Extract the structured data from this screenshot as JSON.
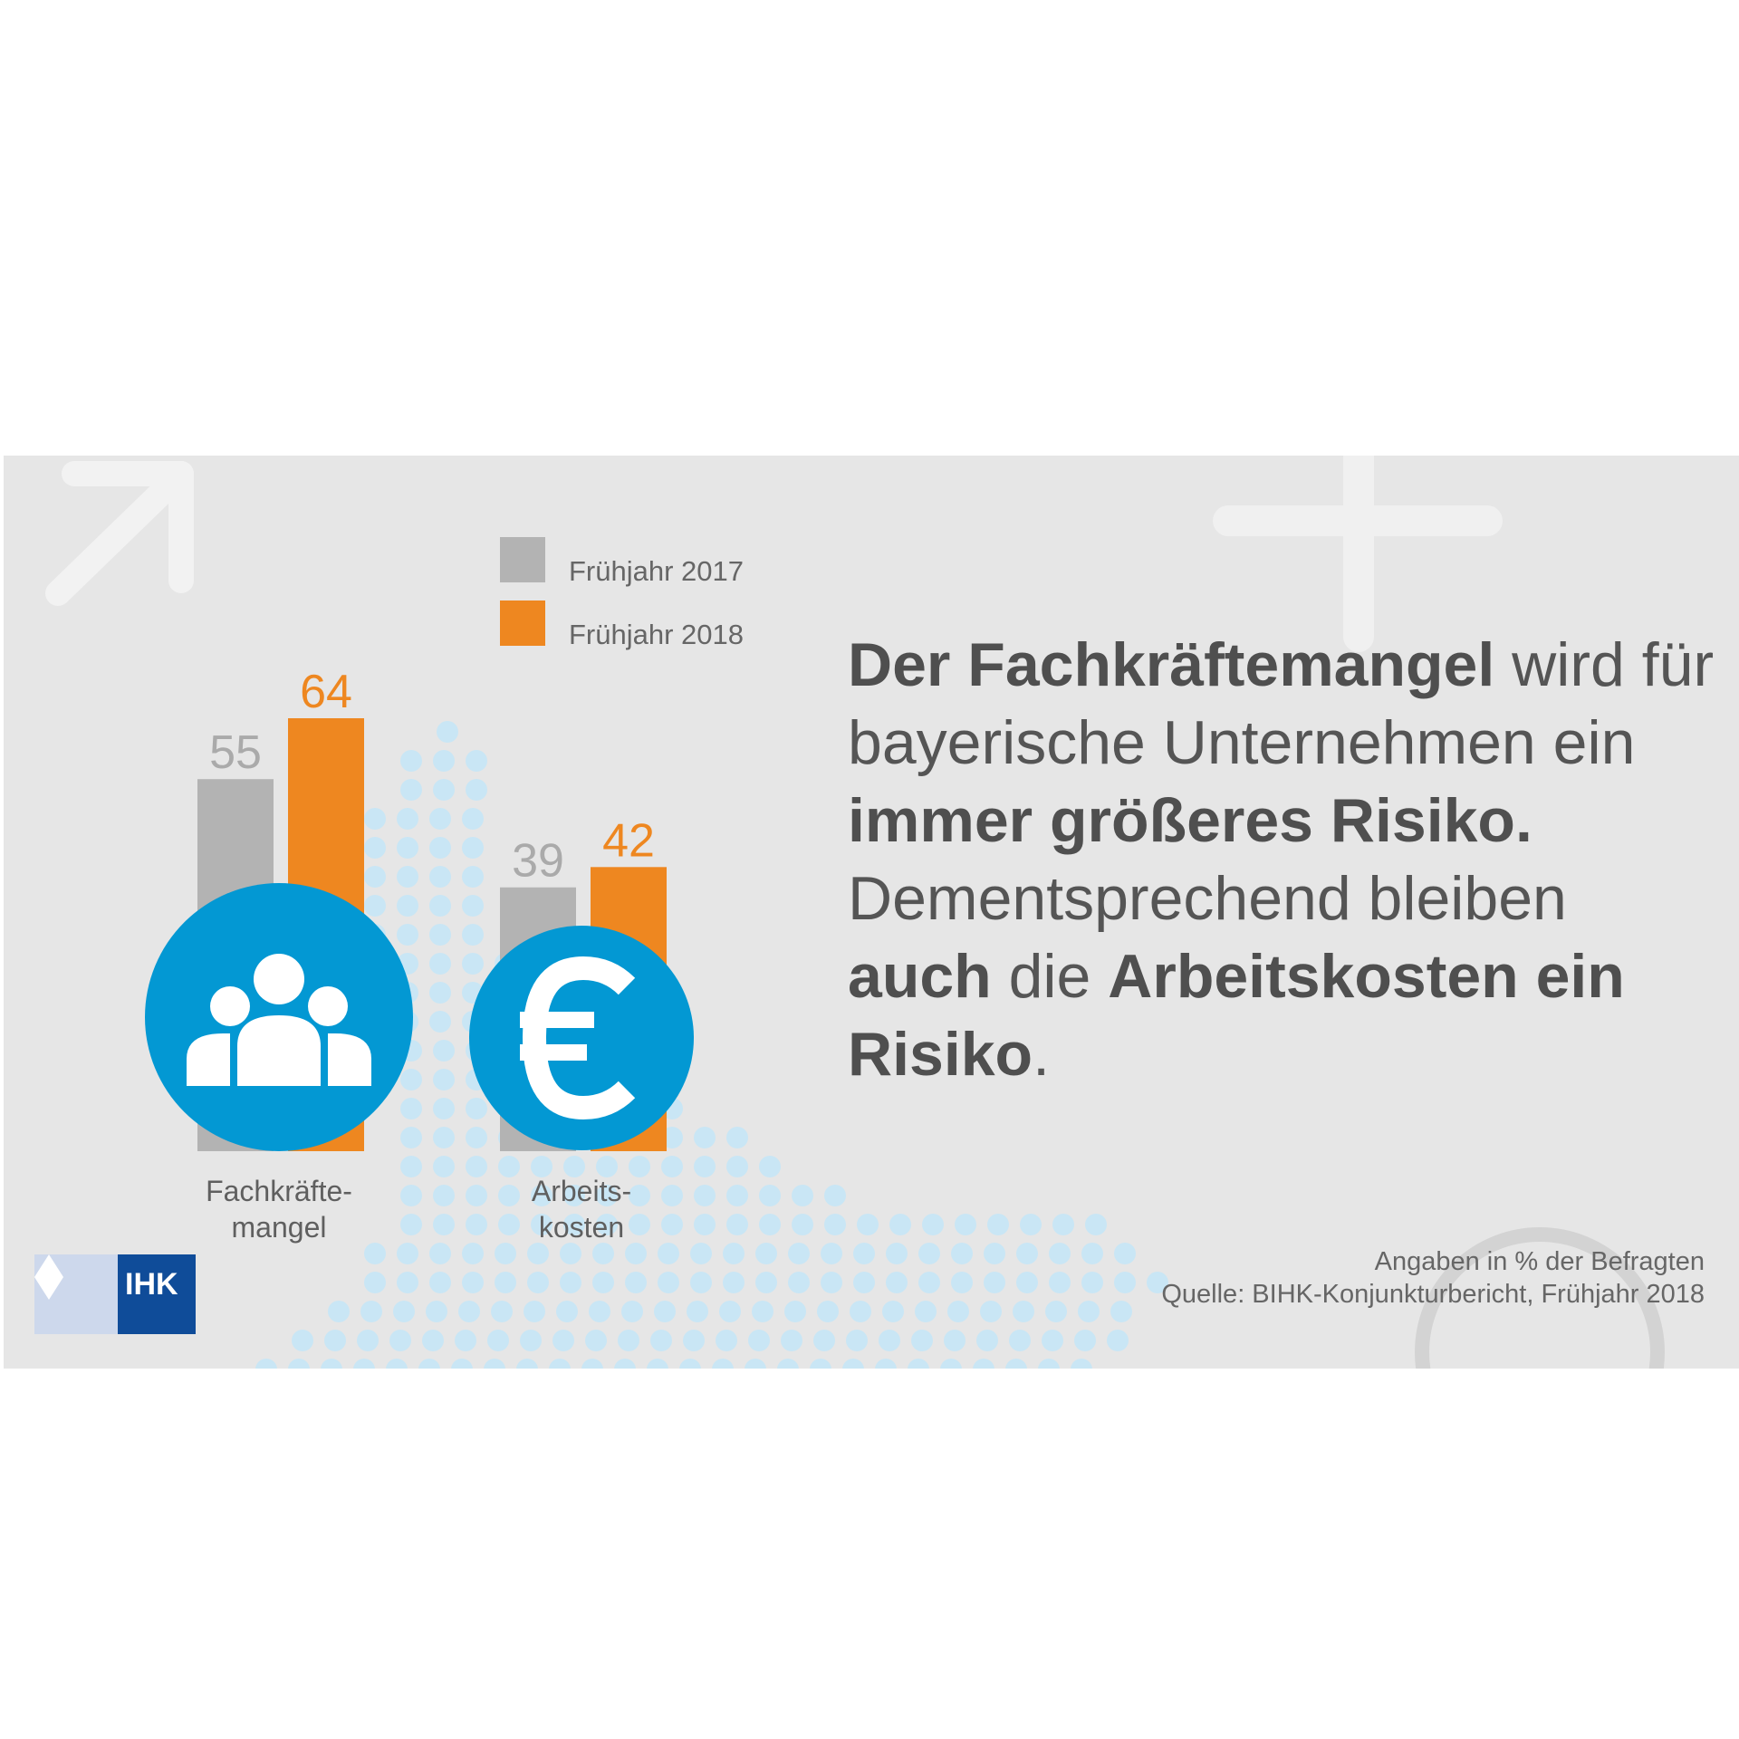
{
  "chart_data": {
    "type": "bar",
    "categories": [
      "Fachkräfte-\nmangel",
      "Arbeits-\nkosten"
    ],
    "category_lines": [
      [
        "Fachkräfte-",
        "mangel"
      ],
      [
        "Arbeits-",
        "kosten"
      ]
    ],
    "series": [
      {
        "name": "Frühjahr 2017",
        "values": [
          55,
          39
        ],
        "color": "#b3b3b3"
      },
      {
        "name": "Frühjahr 2018",
        "values": [
          64,
          42
        ],
        "color": "#ee8720"
      }
    ],
    "ylim": [
      0,
      64
    ],
    "legend_placement": "top-right",
    "grid": false
  },
  "headline": {
    "parts": [
      {
        "text": "Der Fachkräftemangel",
        "bold": true
      },
      {
        "text": " wird für bayerische Unternehmen ein ",
        "bold": false
      },
      {
        "text": "immer größeres Risiko.",
        "bold": true
      },
      {
        "text": " Dementsprechend bleiben ",
        "bold": false
      },
      {
        "text": "auch",
        "bold": true
      },
      {
        "text": " die ",
        "bold": false
      },
      {
        "text": "Arbeitskosten ein Risiko",
        "bold": true
      },
      {
        "text": ".",
        "bold": false
      }
    ]
  },
  "footnote": {
    "unit_note": "Angaben in % der Befragten",
    "source": "Quelle: BIHK-Konjunkturbericht, Frühjahr 2018"
  },
  "logo": {
    "text": "IHK"
  },
  "icons": [
    "people-group-icon",
    "euro-icon"
  ],
  "colors": {
    "background": "#e6e6e6",
    "series_2017": "#b3b3b3",
    "series_2018": "#ee8720",
    "icon_circle": "#0398d3",
    "dots": "#c9e6f5",
    "text": "#555555"
  }
}
